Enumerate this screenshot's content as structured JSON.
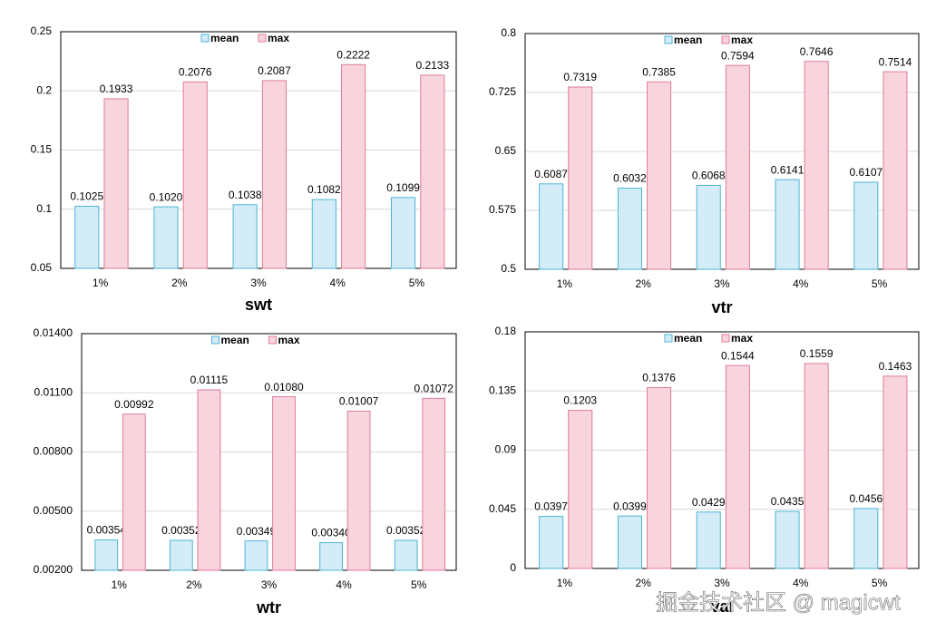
{
  "chart_data": [
    {
      "type": "bar",
      "title": "swt",
      "categories": [
        "1%",
        "2%",
        "3%",
        "4%",
        "5%"
      ],
      "series": [
        {
          "name": "mean",
          "color": "#d4ebf8",
          "edgecolor": "#4cb6d6",
          "values": [
            0.1025,
            0.102,
            0.1038,
            0.1082,
            0.1099
          ],
          "value_labels": [
            "0.1025",
            "0.1020",
            "0.1038",
            "0.1082",
            "0.1099"
          ]
        },
        {
          "name": "max",
          "color": "#f8d5de",
          "edgecolor": "#df7c95",
          "values": [
            0.1933,
            0.2076,
            0.2087,
            0.2222,
            0.2133
          ],
          "value_labels": [
            "0.1933",
            "0.2076",
            "0.2087",
            "0.2222",
            "0.2133"
          ]
        }
      ],
      "ylim": [
        0.05,
        0.25
      ],
      "yticks": [
        0.05,
        0.1,
        0.15,
        0.2,
        0.25
      ],
      "grid": true,
      "legend": "top"
    },
    {
      "type": "bar",
      "title": "vtr",
      "categories": [
        "1%",
        "2%",
        "3%",
        "4%",
        "5%"
      ],
      "series": [
        {
          "name": "mean",
          "color": "#d4ebf8",
          "edgecolor": "#4cb6d6",
          "values": [
            0.6087,
            0.6032,
            0.6068,
            0.6141,
            0.6107
          ],
          "value_labels": [
            "0.6087",
            "0.6032",
            "0.6068",
            "0.6141",
            "0.6107"
          ]
        },
        {
          "name": "max",
          "color": "#f8d5de",
          "edgecolor": "#df7c95",
          "values": [
            0.7319,
            0.7385,
            0.7594,
            0.7646,
            0.7514
          ],
          "value_labels": [
            "0.7319",
            "0.7385",
            "0.7594",
            "0.7646",
            "0.7514"
          ]
        }
      ],
      "ylim": [
        0.5,
        0.8
      ],
      "yticks": [
        0.5,
        0.575,
        0.65,
        0.725,
        0.8
      ],
      "grid": true,
      "legend": "top"
    },
    {
      "type": "bar",
      "title": "wtr",
      "categories": [
        "1%",
        "2%",
        "3%",
        "4%",
        "5%"
      ],
      "series": [
        {
          "name": "mean",
          "color": "#d4ebf8",
          "edgecolor": "#4cb6d6",
          "values": [
            0.00354,
            0.00352,
            0.00349,
            0.0034,
            0.00352
          ],
          "value_labels": [
            "0.00354",
            "0.00352",
            "0.00349",
            "0.00340",
            "0.00352"
          ]
        },
        {
          "name": "max",
          "color": "#f8d5de",
          "edgecolor": "#df7c95",
          "values": [
            0.00992,
            0.01115,
            0.0108,
            0.01007,
            0.01072
          ],
          "value_labels": [
            "0.00992",
            "0.01115",
            "0.01080",
            "0.01007",
            "0.01072"
          ]
        }
      ],
      "ylim": [
        0.002,
        0.014
      ],
      "yticks": [
        {
          "value": 0.002,
          "label": "0.00200"
        },
        {
          "value": 0.005,
          "label": "0.00500"
        },
        {
          "value": 0.008,
          "label": "0.00800"
        },
        {
          "value": 0.011,
          "label": "0.01100"
        },
        {
          "value": 0.014,
          "label": "0.01400"
        }
      ],
      "grid": true,
      "legend": "top"
    },
    {
      "type": "bar",
      "title": "val",
      "categories": [
        "1%",
        "2%",
        "3%",
        "4%",
        "5%"
      ],
      "series": [
        {
          "name": "mean",
          "color": "#d4ebf8",
          "edgecolor": "#4cb6d6",
          "values": [
            0.0397,
            0.0399,
            0.0429,
            0.0435,
            0.0456
          ],
          "value_labels": [
            "0.0397",
            "0.0399",
            "0.0429",
            "0.0435",
            "0.0456"
          ]
        },
        {
          "name": "max",
          "color": "#f8d5de",
          "edgecolor": "#df7c95",
          "values": [
            0.1203,
            0.1376,
            0.1544,
            0.1559,
            0.1463
          ],
          "value_labels": [
            "0.1203",
            "0.1376",
            "0.1544",
            "0.1559",
            "0.1463"
          ]
        }
      ],
      "ylim": [
        0,
        0.18
      ],
      "yticks": [
        0,
        0.045,
        0.09,
        0.135,
        0.18
      ],
      "grid": true,
      "legend": "top"
    }
  ],
  "watermark": "掘金技术社区 @ magicwt"
}
